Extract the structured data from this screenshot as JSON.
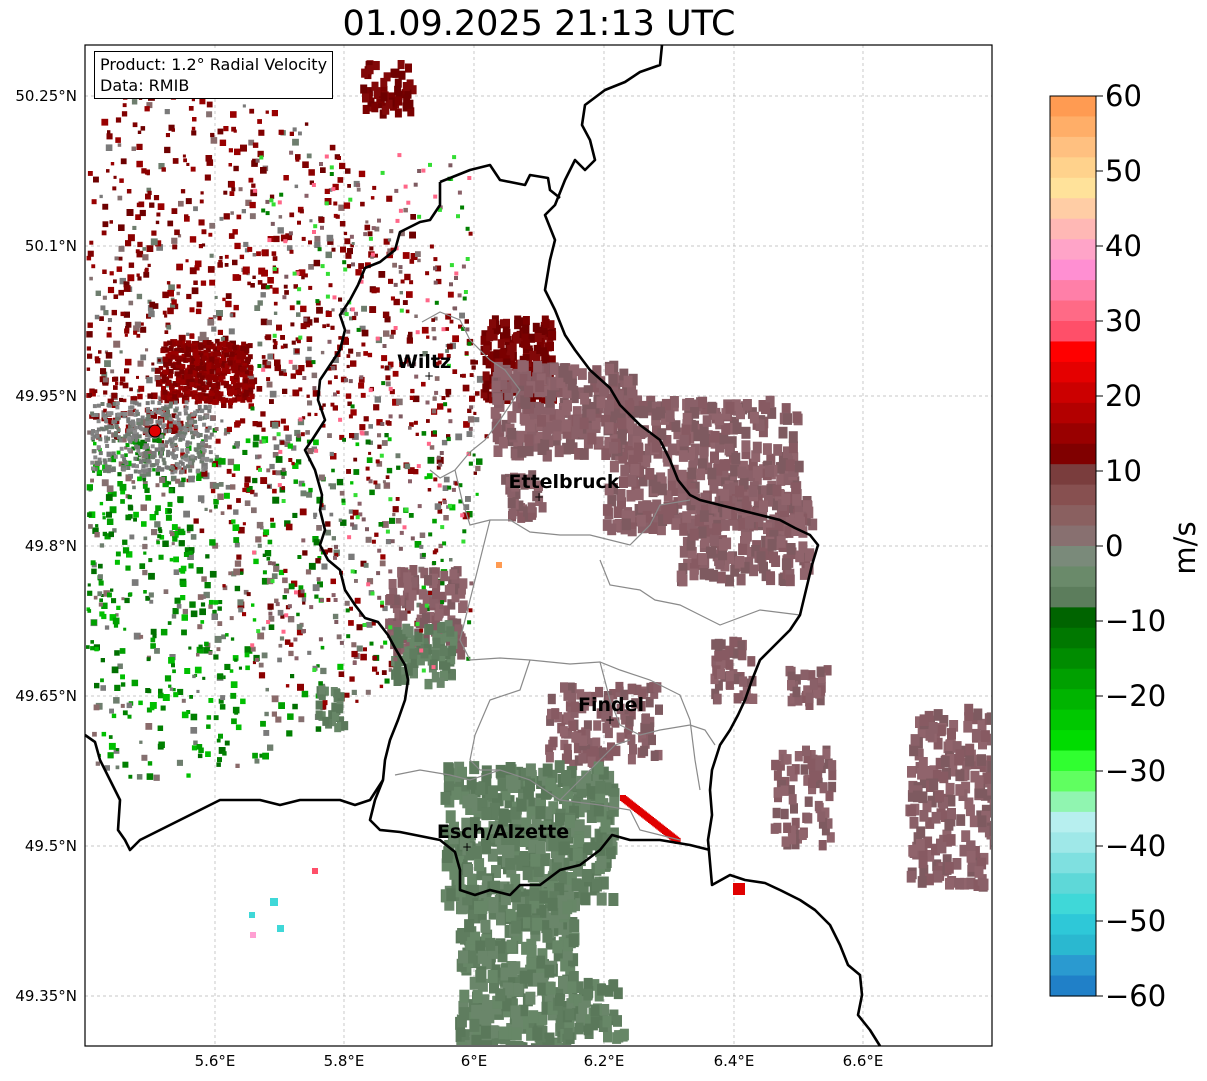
{
  "title": "01.09.2025 21:13 UTC",
  "info": {
    "product": "Product: 1.2° Radial Velocity",
    "data": "Data: RMIB"
  },
  "map": {
    "lat_labels": [
      "50.25°N",
      "50.1°N",
      "49.95°N",
      "49.8°N",
      "49.65°N",
      "49.5°N",
      "49.35°N"
    ],
    "lon_labels": [
      "5.6°E",
      "5.8°E",
      "6°E",
      "6.2°E",
      "6.4°E",
      "6.6°E"
    ],
    "cities": [
      {
        "name": "Wiltz"
      },
      {
        "name": "Ettelbruck"
      },
      {
        "name": "Findel"
      },
      {
        "name": "Esch/Alzette"
      }
    ],
    "radar_marker_color": "#e00000",
    "border_color": "#000000",
    "canton_color": "#888888",
    "grid": true
  },
  "colorbar": {
    "label": "m/s",
    "ticks": [
      "60",
      "50",
      "40",
      "30",
      "20",
      "10",
      "0",
      "−10",
      "−20",
      "−30",
      "−40",
      "−50",
      "−60"
    ],
    "range": [
      -60,
      60
    ],
    "colors": [
      "#ff9b52",
      "#ffae68",
      "#ffc080",
      "#ffd28c",
      "#ffe29a",
      "#ffcda5",
      "#ffb8b5",
      "#ffa4c8",
      "#ff8fd2",
      "#ff7fa8",
      "#ff6a86",
      "#ff4f69",
      "#ff0000",
      "#e50000",
      "#cc0000",
      "#b30000",
      "#990000",
      "#800000",
      "#7a3d3d",
      "#875050",
      "#8a6060",
      "#887070",
      "#7a8a7a",
      "#6a8a6a",
      "#5c7d5c",
      "#006400",
      "#007800",
      "#008c00",
      "#00a000",
      "#00b400",
      "#00c800",
      "#00dc00",
      "#30ff30",
      "#60ff60",
      "#90f5b0",
      "#b7efef",
      "#9fe8e8",
      "#7fe0e0",
      "#5ed8d8",
      "#3fd8d8",
      "#2ec8d8",
      "#2ab8d0",
      "#2a9ad0",
      "#2080c8"
    ]
  }
}
